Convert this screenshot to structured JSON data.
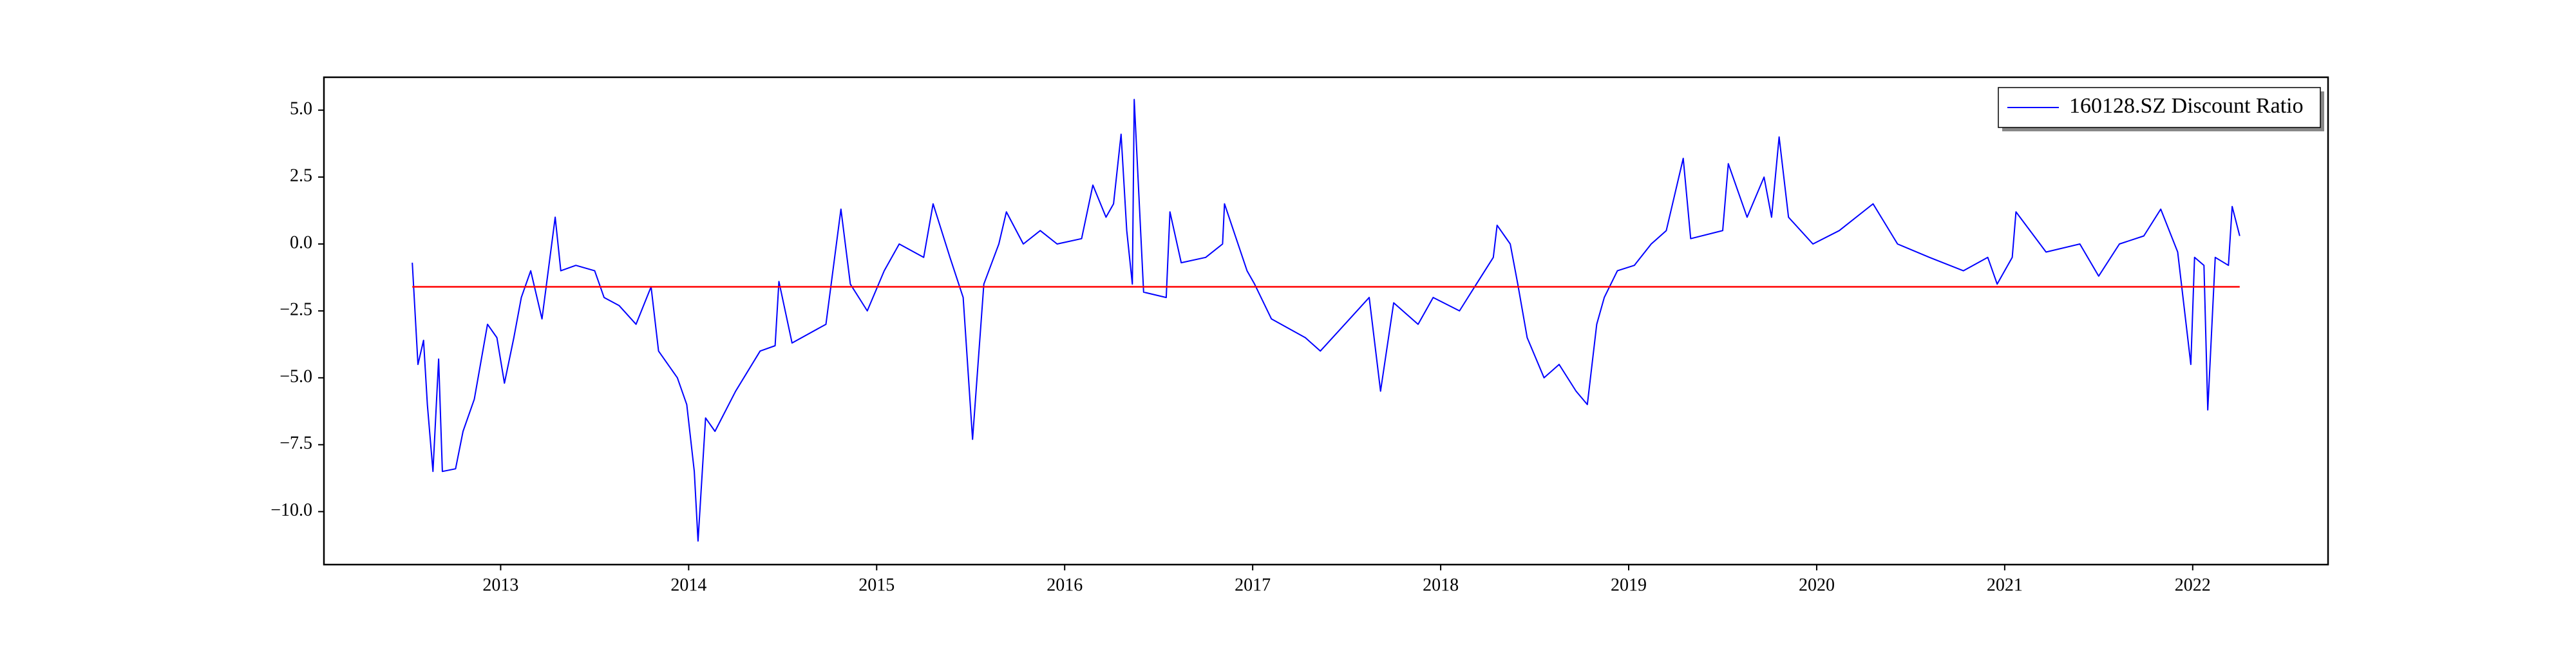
{
  "chart_data": {
    "type": "line",
    "x": [
      2012.53,
      2012.56,
      2012.59,
      2012.61,
      2012.64,
      2012.67,
      2012.69,
      2012.76,
      2012.8,
      2012.86,
      2012.93,
      2012.98,
      2013.02,
      2013.07,
      2013.11,
      2013.16,
      2013.22,
      2013.29,
      2013.32,
      2013.4,
      2013.5,
      2013.55,
      2013.63,
      2013.72,
      2013.8,
      2013.84,
      2013.94,
      2013.99,
      2014.03,
      2014.05,
      2014.09,
      2014.14,
      2014.25,
      2014.38,
      2014.46,
      2014.48,
      2014.55,
      2014.73,
      2014.81,
      2014.86,
      2014.95,
      2015.04,
      2015.12,
      2015.25,
      2015.3,
      2015.39,
      2015.46,
      2015.51,
      2015.57,
      2015.65,
      2015.69,
      2015.78,
      2015.87,
      2015.96,
      2016.09,
      2016.15,
      2016.22,
      2016.26,
      2016.3,
      2016.33,
      2016.36,
      2016.37,
      2016.42,
      2016.54,
      2016.56,
      2016.62,
      2016.75,
      2016.84,
      2016.85,
      2016.97,
      2017.01,
      2017.1,
      2017.28,
      2017.36,
      2017.49,
      2017.62,
      2017.68,
      2017.75,
      2017.88,
      2017.96,
      2018.1,
      2018.19,
      2018.28,
      2018.3,
      2018.37,
      2018.41,
      2018.46,
      2018.55,
      2018.63,
      2018.72,
      2018.78,
      2018.83,
      2018.87,
      2018.94,
      2019.03,
      2019.12,
      2019.2,
      2019.29,
      2019.33,
      2019.5,
      2019.53,
      2019.63,
      2019.72,
      2019.76,
      2019.8,
      2019.85,
      2019.98,
      2020.12,
      2020.3,
      2020.43,
      2020.6,
      2020.78,
      2020.91,
      2020.96,
      2021.04,
      2021.06,
      2021.22,
      2021.4,
      2021.5,
      2021.61,
      2021.74,
      2021.83,
      2021.92,
      2021.99,
      2022.01,
      2022.06,
      2022.08,
      2022.12,
      2022.19,
      2022.21,
      2022.25
    ],
    "series": [
      {
        "name": "160128.SZ Discount Ratio",
        "color": "#0000ff",
        "values": [
          -0.7,
          -4.5,
          -3.6,
          -6.0,
          -8.5,
          -4.3,
          -8.5,
          -8.4,
          -7.0,
          -5.8,
          -3.0,
          -3.5,
          -5.2,
          -3.5,
          -2.0,
          -1.0,
          -2.8,
          1.0,
          -1.0,
          -0.8,
          -1.0,
          -2.0,
          -2.3,
          -3.0,
          -1.6,
          -4.0,
          -5.0,
          -6.0,
          -8.5,
          -11.1,
          -6.5,
          -7.0,
          -5.5,
          -4.0,
          -3.8,
          -1.4,
          -3.7,
          -3.0,
          1.3,
          -1.5,
          -2.5,
          -1.0,
          0.0,
          -0.5,
          1.5,
          -0.5,
          -2.0,
          -7.3,
          -1.5,
          0.0,
          1.2,
          0.0,
          0.5,
          0.0,
          0.2,
          2.2,
          1.0,
          1.5,
          4.1,
          0.5,
          -1.5,
          5.4,
          -1.8,
          -2.0,
          1.2,
          -0.7,
          -0.5,
          0.0,
          1.5,
          -1.0,
          -1.5,
          -2.8,
          -3.5,
          -4.0,
          -3.0,
          -2.0,
          -5.5,
          -2.2,
          -3.0,
          -2.0,
          -2.5,
          -1.5,
          -0.5,
          0.7,
          0.0,
          -1.5,
          -3.5,
          -5.0,
          -4.5,
          -5.5,
          -6.0,
          -3.0,
          -2.0,
          -1.0,
          -0.8,
          0.0,
          0.5,
          3.2,
          0.2,
          0.5,
          3.0,
          1.0,
          2.5,
          1.0,
          4.0,
          1.0,
          0.0,
          0.5,
          1.5,
          0.0,
          -0.5,
          -1.0,
          -0.5,
          -1.5,
          -0.5,
          1.2,
          -0.3,
          0.0,
          -1.2,
          0.0,
          0.3,
          1.3,
          -0.3,
          -4.5,
          -0.5,
          -0.8,
          -6.2,
          -0.5,
          -0.8,
          1.4,
          0.3
        ]
      }
    ],
    "hline": {
      "value": -1.6,
      "color": "#ff0000"
    },
    "xlim": [
      2012.06,
      2022.72
    ],
    "xticks": [
      2013,
      2014,
      2015,
      2016,
      2017,
      2018,
      2019,
      2020,
      2021,
      2022
    ],
    "ylim": [
      -11.98,
      6.23
    ],
    "yticks": [
      {
        "value": -10,
        "label": "−10.0"
      },
      {
        "value": -7.5,
        "label": "−7.5"
      },
      {
        "value": -5,
        "label": "−5.0"
      },
      {
        "value": -2.5,
        "label": "−2.5"
      },
      {
        "value": 0,
        "label": "0.0"
      },
      2.5,
      {
        "value": 5,
        "label": "5.0"
      }
    ],
    "legend": "upper right"
  }
}
